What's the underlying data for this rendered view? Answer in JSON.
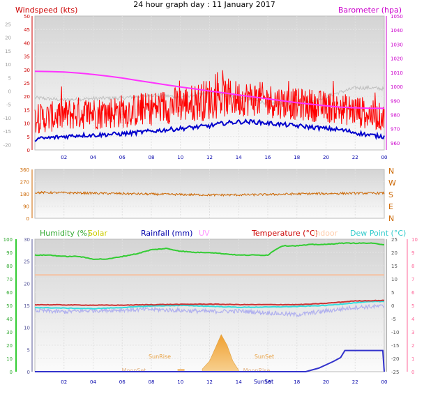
{
  "title": "24 hour graph day : 11 January 2017",
  "chart_data": [
    {
      "type": "line",
      "title": "24 hour graph day : 11 January 2017",
      "x_ticks": [
        "02",
        "04",
        "06",
        "08",
        "10",
        "12",
        "14",
        "16",
        "18",
        "20",
        "22",
        "00"
      ],
      "axes": {
        "wind_kts": {
          "label": "Windspeed (kts)",
          "ticks": [
            "0",
            "5",
            "10",
            "15",
            "20",
            "25",
            "30",
            "35",
            "40",
            "45",
            "50"
          ],
          "ylim": [
            0,
            50
          ],
          "color": "#cc0000"
        },
        "temp_left": {
          "ticks": [
            "-20",
            "-15",
            "-10",
            "-5",
            "0",
            "5",
            "10",
            "15",
            "20",
            "25"
          ],
          "color": "#a0a0a0"
        },
        "barometer": {
          "label": "Barometer (hpa)",
          "ticks": [
            "960",
            "970",
            "980",
            "990",
            "1000",
            "1010",
            "1020",
            "1030",
            "1040",
            "1050"
          ],
          "ylim": [
            955,
            1050
          ],
          "color": "#cc00cc"
        }
      },
      "series": [
        {
          "name": "Barometer (hpa)",
          "color": "#ff33ff",
          "x": [
            0,
            1,
            2,
            3,
            4,
            5,
            6,
            7,
            8,
            9,
            10,
            11,
            12,
            13,
            14,
            15,
            16,
            17,
            18,
            19,
            20,
            21,
            22,
            23,
            24
          ],
          "values": [
            1010.8,
            1010.6,
            1010.3,
            1009.6,
            1008.6,
            1007.4,
            1006,
            1004.4,
            1002.8,
            1001.2,
            999.7,
            998.3,
            996.8,
            995.4,
            994,
            992.6,
            991.2,
            989.9,
            988.5,
            987.4,
            986.3,
            985.4,
            984.9,
            984.6,
            984.6
          ]
        },
        {
          "name": "Temperature (°C)",
          "color": "#c0c0c0",
          "x": [
            0,
            2,
            4,
            6,
            8,
            10,
            12,
            14,
            16,
            17,
            18,
            19,
            20,
            22,
            23,
            24
          ],
          "values": [
            -2.5,
            -3.3,
            -2.8,
            -2.6,
            -1.5,
            -2.2,
            -0.6,
            -2.3,
            -4.5,
            -4.7,
            -4.4,
            -4.2,
            -2,
            1.2,
            1.2,
            0.8
          ]
        },
        {
          "name": "Windspeed (kts) low",
          "color": "#0000cc",
          "x": [
            0,
            1,
            2,
            3,
            4,
            5,
            6,
            7,
            8,
            9,
            10,
            11,
            12,
            13,
            14,
            15,
            16,
            17,
            18,
            19,
            20,
            21,
            22,
            23,
            24
          ],
          "values": [
            4,
            4.5,
            5,
            5.5,
            5.5,
            5.8,
            6,
            6.5,
            7,
            7.5,
            8,
            8.5,
            9,
            10,
            10.5,
            10.5,
            10,
            9.5,
            9,
            8.5,
            8,
            7.5,
            6.5,
            5.5,
            5
          ]
        },
        {
          "name": "Windspeed (kts) high",
          "color": "#ff0000",
          "x": [
            0,
            1,
            2,
            3,
            4,
            5,
            6,
            7,
            8,
            9,
            10,
            11,
            12,
            13,
            14,
            15,
            16,
            17,
            18,
            19,
            20,
            21,
            22,
            23,
            24
          ],
          "values": [
            12,
            13,
            14,
            15,
            15,
            15,
            16,
            16,
            17,
            18,
            19,
            20,
            22,
            22,
            21,
            21,
            20,
            19,
            18,
            18,
            17,
            16,
            16,
            14,
            12
          ]
        }
      ]
    },
    {
      "type": "line",
      "axis_ticks": [
        "0",
        "90",
        "180",
        "270",
        "360"
      ],
      "compass": [
        "N",
        "W",
        "S",
        "E",
        "N"
      ],
      "x_ticks": [
        "02",
        "04",
        "06",
        "08",
        "10",
        "12",
        "14",
        "16",
        "18",
        "20",
        "22",
        "00"
      ],
      "ylim": [
        0,
        360
      ],
      "series": [
        {
          "name": "Wind direction",
          "color": "#cc6600",
          "x": [
            0,
            2,
            4,
            6,
            8,
            10,
            12,
            14,
            16,
            18,
            20,
            22,
            24
          ],
          "values": [
            190,
            188,
            185,
            182,
            178,
            175,
            172,
            172,
            175,
            180,
            182,
            185,
            185
          ]
        }
      ]
    },
    {
      "type": "line",
      "x_ticks": [
        "02",
        "04",
        "06",
        "08",
        "10",
        "12",
        "14",
        "16",
        "18",
        "20",
        "22",
        "00"
      ],
      "legend": [
        {
          "label": "Humidity (%)",
          "color": "#33aa33"
        },
        {
          "label": "Solar",
          "color": "#cccc00"
        },
        {
          "label": "Rainfall (mm)",
          "color": "#0000aa"
        },
        {
          "label": "UV",
          "color": "#ff99ff"
        },
        {
          "label": "Temperature (°C)",
          "color": "#cc0000"
        },
        {
          "label": "Indoor",
          "color": "#ffccaa"
        },
        {
          "label": "Dew Point (°C)",
          "color": "#33cccc"
        }
      ],
      "axes": {
        "humidity": {
          "ticks": [
            "0",
            "10",
            "20",
            "30",
            "40",
            "50",
            "60",
            "70",
            "80",
            "90",
            "100"
          ],
          "ylim": [
            0,
            100
          ],
          "color": "#33aa33"
        },
        "rain": {
          "ticks": [
            "0",
            "5",
            "10",
            "15",
            "20",
            "25",
            "30"
          ],
          "ylim": [
            0,
            30
          ],
          "color": "#555599"
        },
        "temp_right": {
          "ticks": [
            "-25",
            "-20",
            "-15",
            "-10",
            "-5",
            "0",
            "5",
            "10",
            "15",
            "20",
            "25"
          ],
          "ylim": [
            -25,
            25
          ],
          "color": "#555555"
        },
        "far_right": {
          "ticks": [
            "0",
            "1",
            "2",
            "3",
            "4",
            "5",
            "6",
            "7",
            "8",
            "9",
            "10"
          ],
          "ylim": [
            0,
            10
          ],
          "color": "#ff6699"
        }
      },
      "annotations": [
        "SunRise",
        "SunSet",
        "MoonSet",
        "MoonRise",
        "SunSet"
      ],
      "series": [
        {
          "name": "Humidity (%)",
          "color": "#33cc33",
          "x": [
            0,
            1,
            2,
            3,
            4,
            5,
            6,
            7,
            8,
            9,
            10,
            11,
            12,
            13,
            14,
            15,
            16,
            16.5,
            17,
            18,
            19,
            20,
            21,
            22,
            23,
            24
          ],
          "values": [
            88,
            88,
            87,
            87,
            85,
            85,
            87,
            89,
            92,
            93,
            91,
            90,
            90,
            89,
            88,
            88,
            88,
            92,
            95,
            95,
            96,
            96,
            97,
            97,
            97,
            96
          ]
        },
        {
          "name": "Indoor",
          "color": "#f5c0a0",
          "x": [
            0,
            24
          ],
          "values": [
            11.5,
            11.5
          ]
        },
        {
          "name": "Temperature (°C)",
          "color": "#cc3333",
          "x": [
            0,
            2,
            4,
            6,
            8,
            10,
            12,
            14,
            16,
            18,
            19,
            20,
            22,
            23,
            24
          ],
          "values": [
            0.3,
            0.2,
            0.1,
            0.1,
            0.3,
            0.4,
            0.5,
            0.3,
            0.3,
            0.3,
            0.5,
            0.8,
            1.7,
            1.8,
            1.9
          ]
        },
        {
          "name": "Dew Point (°C)",
          "color": "#33dddd",
          "x": [
            0,
            2,
            4,
            6,
            8,
            10,
            12,
            14,
            16,
            18,
            20,
            22,
            23,
            24
          ],
          "values": [
            -0.8,
            -1.0,
            -1.2,
            -0.8,
            -0.2,
            0.0,
            -0.3,
            -0.7,
            -0.6,
            -0.4,
            0.0,
            1.0,
            1.4,
            1.5
          ]
        },
        {
          "name": "Solar",
          "color": "#e8a040",
          "x": [
            11.5,
            12,
            12.4,
            12.8,
            13.2,
            13.6,
            14
          ],
          "values": [
            0.2,
            0.8,
            1.8,
            2.8,
            2.0,
            0.8,
            0.1
          ]
        },
        {
          "name": "Rainfall (mm)",
          "color": "#3333cc",
          "x": [
            0,
            18.6,
            19.5,
            20.5,
            21,
            21.3,
            22.5,
            23.9,
            24
          ],
          "values": [
            0,
            0,
            0.8,
            2.3,
            3.2,
            4.8,
            4.8,
            4.8,
            0
          ]
        }
      ]
    }
  ]
}
